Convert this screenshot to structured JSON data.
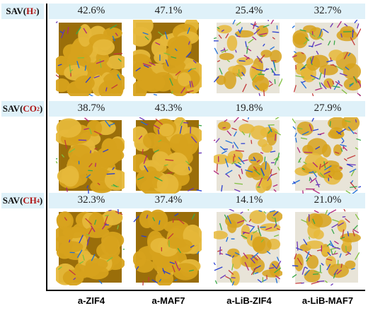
{
  "rows": [
    {
      "label_prefix": "SAV(",
      "gas": "H",
      "sub": "2",
      "label_suffix": ")",
      "values": [
        "42.6%",
        "47.1%",
        "25.4%",
        "32.7%"
      ]
    },
    {
      "label_prefix": "SAV(",
      "gas": "CO",
      "sub": "2",
      "label_suffix": ")",
      "values": [
        "38.7%",
        "43.3%",
        "19.8%",
        "27.9%"
      ]
    },
    {
      "label_prefix": "SAV(",
      "gas": "CH",
      "sub": "4",
      "label_suffix": ")",
      "values": [
        "32.3%",
        "37.4%",
        "14.1%",
        "21.0%"
      ]
    }
  ],
  "columns": [
    "a-ZIF4",
    "a-MAF7",
    "a-LiB-ZIF4",
    "a-LiB-MAF7"
  ],
  "colors": {
    "band": "#dff1f9",
    "gas_label": "#b01515",
    "surface": "#d7a21c",
    "surface_dark": "#9a6e0a"
  }
}
